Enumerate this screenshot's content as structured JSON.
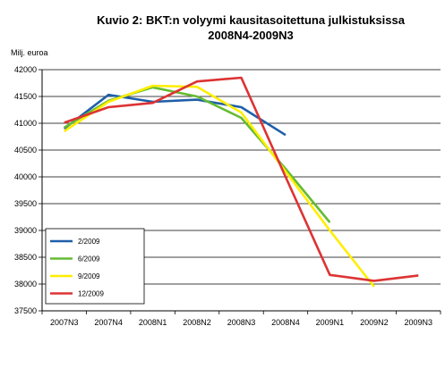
{
  "chart_data": {
    "type": "line",
    "title": "Kuvio 2: BKT:n volyymi kausitasoitettuna julkistuksissa",
    "subtitle": "2008N4-2009N3",
    "ylabel": "Milj. euroa",
    "xlabel": "",
    "categories": [
      "2007N3",
      "2007N4",
      "2008N1",
      "2008N2",
      "2008N3",
      "2008N4",
      "2009N1",
      "2009N2",
      "2009N3"
    ],
    "ylim": [
      37500,
      42000
    ],
    "yticks": [
      37500,
      38000,
      38500,
      39000,
      39500,
      40000,
      40500,
      41000,
      41500,
      42000
    ],
    "grid": true,
    "legend_position": "bottom-left",
    "series": [
      {
        "name": "2/2009",
        "color": "#1F5FA8",
        "values": [
          40900,
          41530,
          41400,
          41440,
          41300,
          40780,
          null,
          null,
          null
        ]
      },
      {
        "name": "6/2009",
        "color": "#66BB33",
        "values": [
          40920,
          41420,
          41670,
          41500,
          41100,
          40150,
          39150,
          null,
          null
        ]
      },
      {
        "name": "9/2009",
        "color": "#FFEE00",
        "values": [
          40850,
          41400,
          41700,
          41680,
          41200,
          40100,
          39000,
          37950,
          null
        ]
      },
      {
        "name": "12/2009",
        "color": "#DD3333",
        "values": [
          41010,
          41300,
          41380,
          41780,
          41850,
          40000,
          38170,
          38060,
          38160
        ]
      }
    ]
  }
}
